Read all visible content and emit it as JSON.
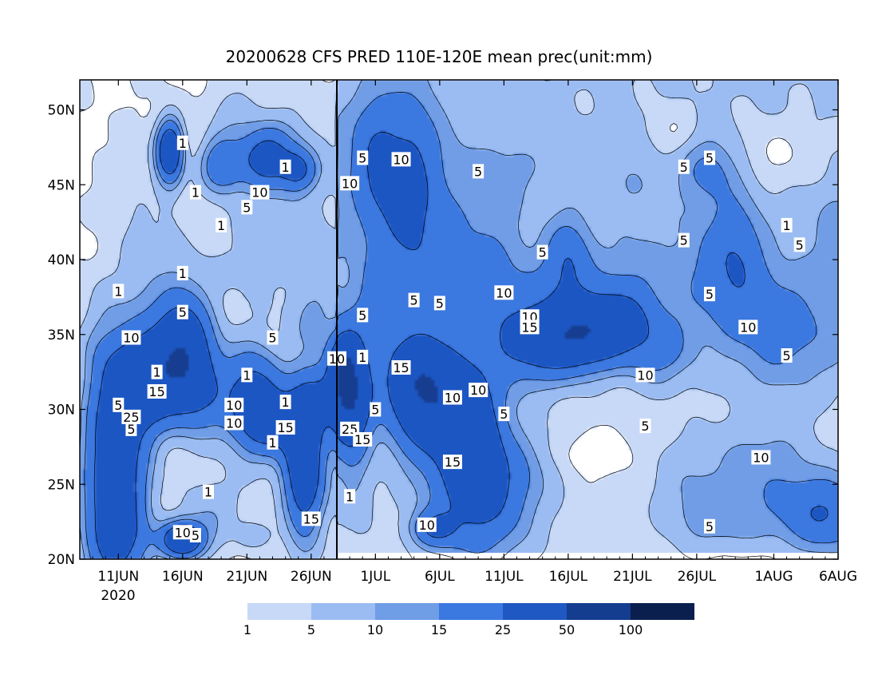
{
  "chart_data": {
    "type": "heatmap",
    "title": "20200628 CFS PRED 110E-120E mean prec(unit:mm)",
    "xlabel": "",
    "ylabel": "",
    "x_axis": {
      "ticks": [
        "11JUN",
        "16JUN",
        "21JUN",
        "26JUN",
        "1JUL",
        "6JUL",
        "11JUL",
        "16JUL",
        "21JUL",
        "26JUL",
        "1AUG",
        "6AUG"
      ],
      "year_label": "2020",
      "range": [
        "8JUN2020",
        "6AUG2020"
      ],
      "forecast_start": "28JUN2020"
    },
    "y_axis": {
      "ticks": [
        "20N",
        "25N",
        "30N",
        "35N",
        "40N",
        "45N",
        "50N"
      ],
      "ylim": [
        20,
        52
      ]
    },
    "colorbar": {
      "levels": [
        1,
        5,
        10,
        15,
        25,
        50,
        100
      ],
      "labels": [
        "1",
        "5",
        "10",
        "15",
        "25",
        "50",
        "100"
      ],
      "colors": [
        "#c8d9f7",
        "#9abcf2",
        "#6f9de6",
        "#3b78e0",
        "#1f57c3",
        "#143c8f",
        "#0a1f4d"
      ]
    },
    "line_color": "#000000",
    "contour_labels": [
      {
        "label": "1",
        "date": "16JUN",
        "lat": 47.8
      },
      {
        "label": "5",
        "date": "30JUN",
        "lat": 46.8
      },
      {
        "label": "10",
        "date": "3JUL",
        "lat": 46.7
      },
      {
        "label": "1",
        "date": "24JUN",
        "lat": 46.2
      },
      {
        "label": "10",
        "date": "22JUN",
        "lat": 44.5
      },
      {
        "label": "5",
        "date": "21JUN",
        "lat": 43.5
      },
      {
        "label": "1",
        "date": "17JUN",
        "lat": 44.5
      },
      {
        "label": "10",
        "date": "29JUN",
        "lat": 45.1
      },
      {
        "label": "5",
        "date": "9JUL",
        "lat": 45.9
      },
      {
        "label": "5",
        "date": "25JUL",
        "lat": 46.2
      },
      {
        "label": "5",
        "date": "27JUL",
        "lat": 46.8
      },
      {
        "label": "1",
        "date": "19JUN",
        "lat": 42.3
      },
      {
        "label": "1",
        "date": "2AUG",
        "lat": 42.3
      },
      {
        "label": "5",
        "date": "25JUL",
        "lat": 41.3
      },
      {
        "label": "5",
        "date": "3AUG",
        "lat": 41.0
      },
      {
        "label": "5",
        "date": "14JUL",
        "lat": 40.5
      },
      {
        "label": "1",
        "date": "16JUN",
        "lat": 39.1
      },
      {
        "label": "1",
        "date": "11JUN",
        "lat": 37.9
      },
      {
        "label": "10",
        "date": "11JUL",
        "lat": 37.8
      },
      {
        "label": "5",
        "date": "4JUL",
        "lat": 37.3
      },
      {
        "label": "5",
        "date": "6JUL",
        "lat": 37.1
      },
      {
        "label": "5",
        "date": "27JUL",
        "lat": 37.7
      },
      {
        "label": "5",
        "date": "16JUN",
        "lat": 36.5
      },
      {
        "label": "5",
        "date": "30JUN",
        "lat": 36.3
      },
      {
        "label": "10",
        "date": "13JUL",
        "lat": 36.2
      },
      {
        "label": "15",
        "date": "13JUL",
        "lat": 35.5
      },
      {
        "label": "10",
        "date": "30JUL",
        "lat": 35.5
      },
      {
        "label": "10",
        "date": "12JUN",
        "lat": 34.8
      },
      {
        "label": "5",
        "date": "23JUN",
        "lat": 34.8
      },
      {
        "label": "10",
        "date": "28JUN",
        "lat": 33.4
      },
      {
        "label": "1",
        "date": "30JUN",
        "lat": 33.5
      },
      {
        "label": "5",
        "date": "2AUG",
        "lat": 33.6
      },
      {
        "label": "15",
        "date": "3JUL",
        "lat": 32.8
      },
      {
        "label": "1",
        "date": "14JUN",
        "lat": 32.5
      },
      {
        "label": "1",
        "date": "21JUN",
        "lat": 32.3
      },
      {
        "label": "10",
        "date": "22JUL",
        "lat": 32.3
      },
      {
        "label": "15",
        "date": "14JUN",
        "lat": 31.2
      },
      {
        "label": "10",
        "date": "9JUL",
        "lat": 31.3
      },
      {
        "label": "10",
        "date": "7JUL",
        "lat": 30.8
      },
      {
        "label": "5",
        "date": "11JUN",
        "lat": 30.3
      },
      {
        "label": "1",
        "date": "24JUN",
        "lat": 30.5
      },
      {
        "label": "10",
        "date": "20JUN",
        "lat": 30.3
      },
      {
        "label": "5",
        "date": "1JUL",
        "lat": 30.0
      },
      {
        "label": "25",
        "date": "12JUN",
        "lat": 29.5
      },
      {
        "label": "5",
        "date": "11JUL",
        "lat": 29.7
      },
      {
        "label": "10",
        "date": "20JUN",
        "lat": 29.1
      },
      {
        "label": "5",
        "date": "12JUN",
        "lat": 28.7
      },
      {
        "label": "15",
        "date": "24JUN",
        "lat": 28.8
      },
      {
        "label": "5",
        "date": "22JUL",
        "lat": 28.9
      },
      {
        "label": "25",
        "date": "29JUN",
        "lat": 28.7
      },
      {
        "label": "15",
        "date": "30JUN",
        "lat": 28.0
      },
      {
        "label": "1",
        "date": "23JUN",
        "lat": 27.8
      },
      {
        "label": "15",
        "date": "7JUL",
        "lat": 26.5
      },
      {
        "label": "10",
        "date": "31JUL",
        "lat": 26.8
      },
      {
        "label": "1",
        "date": "18JUN",
        "lat": 24.5
      },
      {
        "label": "1",
        "date": "29JUN",
        "lat": 24.2
      },
      {
        "label": "15",
        "date": "26JUN",
        "lat": 22.7
      },
      {
        "label": "10",
        "date": "5JUL",
        "lat": 22.3
      },
      {
        "label": "5",
        "date": "27JUL",
        "lat": 22.2
      },
      {
        "label": "10",
        "date": "16JUN",
        "lat": 21.8
      },
      {
        "label": "5",
        "date": "17JUN",
        "lat": 21.6
      }
    ]
  }
}
